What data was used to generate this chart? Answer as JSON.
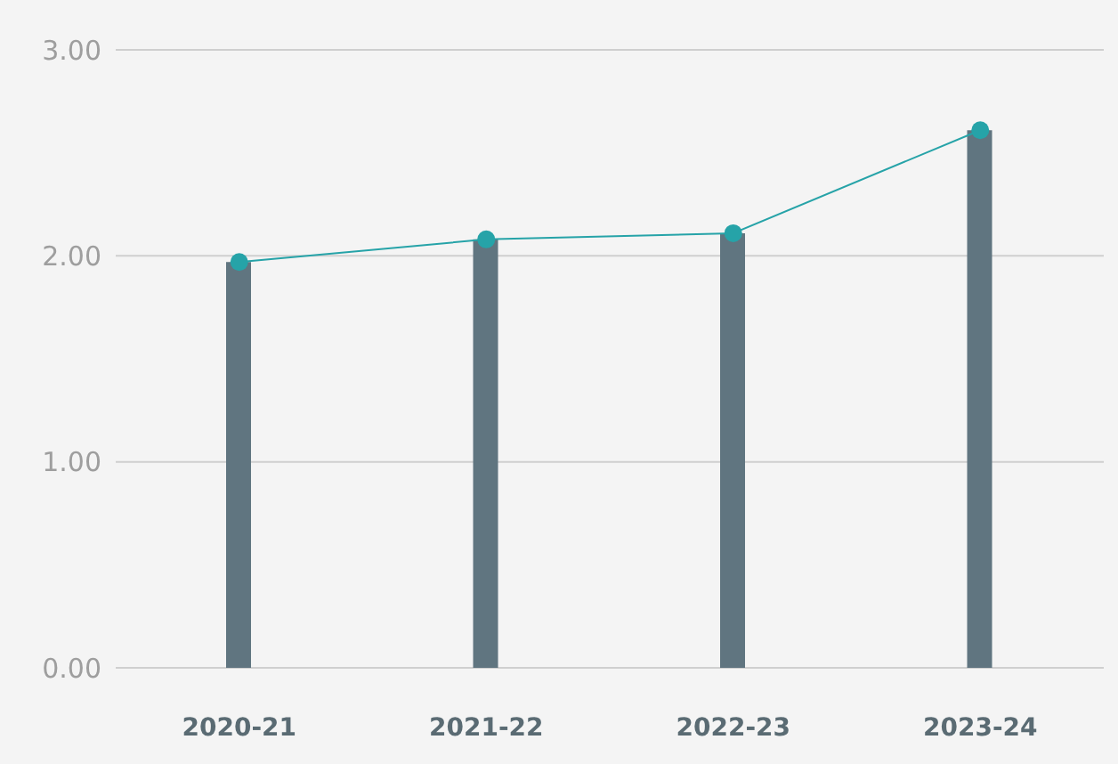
{
  "chart_data": {
    "type": "bar",
    "categories": [
      "2020-21",
      "2021-22",
      "2022-23",
      "2023-24"
    ],
    "series": [
      {
        "color": "#607580",
        "values": [
          1.97,
          2.08,
          2.11,
          2.61
        ]
      },
      {
        "type": "line",
        "color": "#26a3a8",
        "values": [
          1.97,
          2.08,
          2.11,
          2.61
        ]
      }
    ],
    "ylim": [
      0,
      3
    ],
    "yticks": [
      {
        "value": 0,
        "label": "0.00"
      },
      {
        "value": 1,
        "label": "1.00"
      },
      {
        "value": 2,
        "label": "2.00"
      },
      {
        "value": 3,
        "label": "3.00"
      }
    ],
    "grid": "y",
    "marker": "circle",
    "line_style": "solid"
  }
}
